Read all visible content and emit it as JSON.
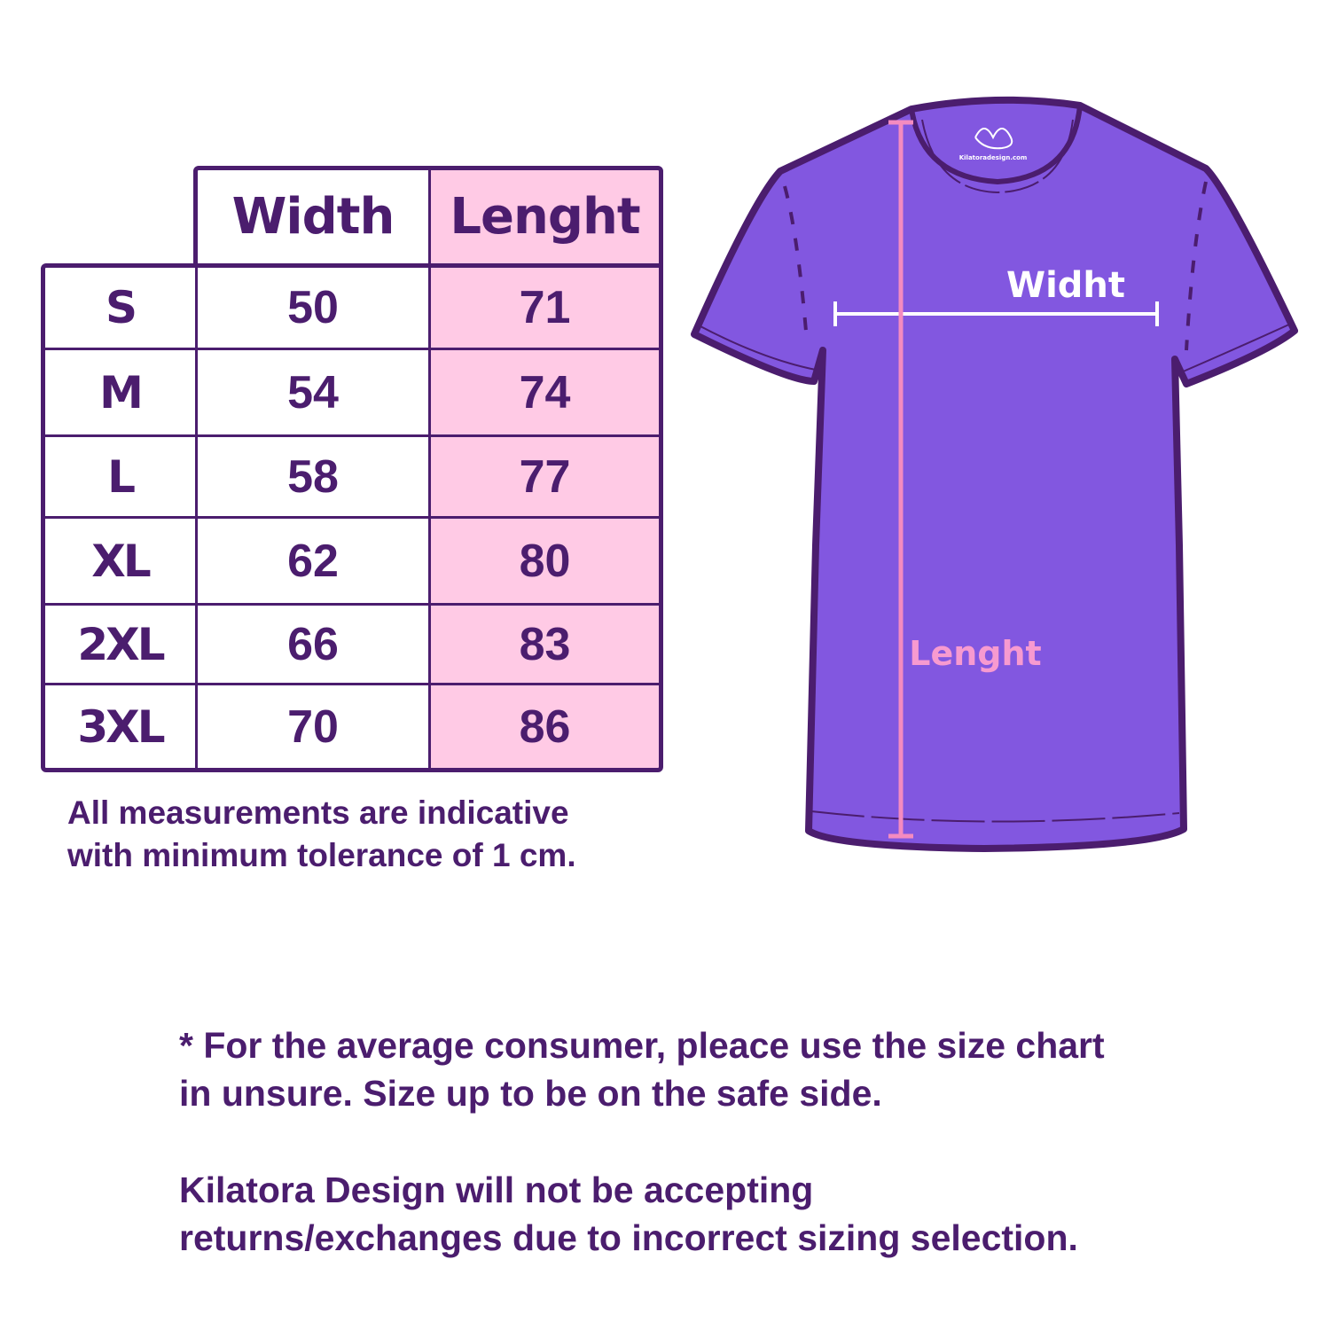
{
  "table": {
    "headers": [
      "Width",
      "Lenght"
    ],
    "rows": [
      {
        "size": "S",
        "width": "50",
        "length": "71"
      },
      {
        "size": "M",
        "width": "54",
        "length": "74"
      },
      {
        "size": "L",
        "width": "58",
        "length": "77"
      },
      {
        "size": "XL",
        "width": "62",
        "length": "80"
      },
      {
        "size": "2XL",
        "width": "66",
        "length": "83"
      },
      {
        "size": "3XL",
        "width": "70",
        "length": "86"
      }
    ]
  },
  "tolerance_note": [
    "All measurements are indicative",
    "with minimum tolerance of 1 cm."
  ],
  "diagram": {
    "width_label": "Widht",
    "length_label": "Lenght",
    "logo_text": "Kilatora Design",
    "logo_url": "Kilatoradesign.com"
  },
  "footer": {
    "consumer_note": [
      "* For the average consumer, pleace use the size chart",
      "in unsure. Size up to be on the safe side."
    ],
    "returns_note": [
      "Kilatora Design will not be accepting",
      "returns/exchanges due to incorrect sizing selection."
    ]
  },
  "colors": {
    "dark_purple": "#4b1d6e",
    "shirt_purple": "#8257e0",
    "pink": "#ffcae5",
    "pink_line": "#f48bc0"
  }
}
